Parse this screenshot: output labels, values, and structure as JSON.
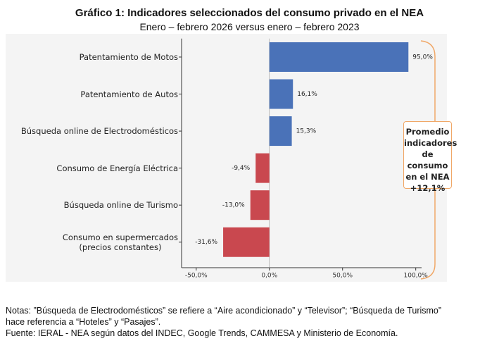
{
  "chart_data": {
    "type": "barh",
    "title": "Gráfico 1: Indicadores seleccionados del consumo privado en el NEA",
    "subtitle": "Enero – febrero 2026 versus enero – febrero 2023",
    "categories": [
      "Patentamiento de Motos",
      "Patentamiento de Autos",
      "Búsqueda online de Electrodomésticos",
      "Consumo de Energía Eléctrica",
      "Búsqueda online de Turismo",
      "Consumo en supermercados\n(precios constantes)"
    ],
    "values": [
      95.0,
      16.1,
      15.3,
      -9.4,
      -13.0,
      -31.6
    ],
    "value_labels": [
      "95,0%",
      "16,1%",
      "15,3%",
      "-9,4%",
      "-13,0%",
      "-31,6%"
    ],
    "positive_color": "#4a72b8",
    "negative_color": "#c9484f",
    "xlim": [
      -60,
      104
    ],
    "xticks": [
      {
        "value": -50,
        "label": "-50,0%"
      },
      {
        "value": 0,
        "label": "0,0%"
      },
      {
        "value": 50,
        "label": "50,0%"
      },
      {
        "value": 100,
        "label": "100,0%"
      }
    ],
    "annotation": "Promedio\nindicadores\nde consumo\nen el NEA\n+12,1%",
    "notes": [
      "Notas: ”Búsqueda de Electrodomésticos” se refiere a “Aire acondicionado” y “Televisor”; “Búsqueda de Turismo”\nhace referencia a  “Hoteles” y “Pasajes”.",
      "Fuente: IERAL - NEA según datos del INDEC, Google Trends, CAMMESA y Ministerio de Economía."
    ]
  }
}
